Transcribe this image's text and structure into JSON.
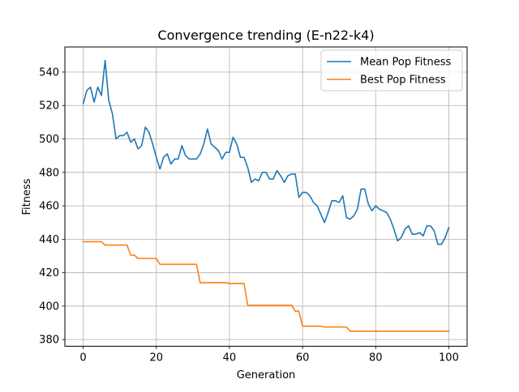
{
  "chart_data": {
    "type": "line",
    "title": "Convergence trending (E-n22-k4)",
    "xlabel": "Generation",
    "ylabel": "Fitness",
    "xlim": [
      -5,
      105
    ],
    "ylim": [
      376,
      555
    ],
    "xticks": [
      0,
      20,
      40,
      60,
      80,
      100
    ],
    "yticks": [
      380,
      400,
      420,
      440,
      460,
      480,
      500,
      520,
      540
    ],
    "grid": true,
    "legend_position": "upper right",
    "series": [
      {
        "name": "Mean Pop Fitness",
        "color": "#1f77b4",
        "x": [
          0,
          1,
          2,
          3,
          4,
          5,
          6,
          7,
          8,
          9,
          10,
          11,
          12,
          13,
          14,
          15,
          16,
          17,
          18,
          19,
          20,
          21,
          22,
          23,
          24,
          25,
          26,
          27,
          28,
          29,
          30,
          31,
          32,
          33,
          34,
          35,
          36,
          37,
          38,
          39,
          40,
          41,
          42,
          43,
          44,
          45,
          46,
          47,
          48,
          49,
          50,
          51,
          52,
          53,
          54,
          55,
          56,
          57,
          58,
          59,
          60,
          61,
          62,
          63,
          64,
          65,
          66,
          67,
          68,
          69,
          70,
          71,
          72,
          73,
          74,
          75,
          76,
          77,
          78,
          79,
          80,
          81,
          82,
          83,
          84,
          85,
          86,
          87,
          88,
          89,
          90,
          91,
          92,
          93,
          94,
          95,
          96,
          97,
          98,
          99,
          100
        ],
        "values": [
          521,
          529,
          531,
          522,
          531,
          526,
          547,
          523,
          515,
          500,
          502,
          502,
          504,
          498,
          500,
          494,
          496,
          507,
          504,
          497,
          489,
          482,
          489,
          491,
          485,
          488,
          488,
          496,
          490,
          488,
          488,
          488,
          491,
          497,
          506,
          497,
          495,
          493,
          488,
          492,
          492,
          501,
          497,
          489,
          489,
          483,
          474,
          476,
          475,
          480,
          480,
          476,
          476,
          481,
          478,
          474,
          478,
          479,
          479,
          465,
          468,
          468,
          466,
          462,
          460,
          455,
          450,
          456,
          463,
          463,
          462,
          466,
          453,
          452,
          454,
          458,
          470,
          470,
          461,
          457,
          460,
          458,
          457,
          456,
          452,
          446,
          439,
          441,
          446,
          448,
          443,
          443,
          444,
          442,
          448,
          448,
          445,
          437,
          437,
          441,
          447
        ]
      },
      {
        "name": "Best Pop Fitness",
        "color": "#ff7f0e",
        "x": [
          0,
          1,
          2,
          3,
          4,
          5,
          6,
          7,
          8,
          9,
          10,
          11,
          12,
          13,
          14,
          15,
          16,
          17,
          18,
          19,
          20,
          21,
          22,
          23,
          24,
          25,
          26,
          27,
          28,
          29,
          30,
          31,
          32,
          33,
          34,
          35,
          36,
          37,
          38,
          39,
          40,
          41,
          42,
          43,
          44,
          45,
          46,
          47,
          48,
          49,
          50,
          51,
          52,
          53,
          54,
          55,
          56,
          57,
          58,
          59,
          60,
          61,
          62,
          63,
          64,
          65,
          66,
          67,
          68,
          69,
          70,
          71,
          72,
          73,
          74,
          75,
          76,
          77,
          78,
          79,
          80,
          81,
          82,
          83,
          84,
          85,
          86,
          87,
          88,
          89,
          90,
          91,
          92,
          93,
          94,
          95,
          96,
          97,
          98,
          99,
          100
        ],
        "values": [
          438.5,
          438.5,
          438.5,
          438.5,
          438.5,
          438.5,
          436.5,
          436.5,
          436.5,
          436.5,
          436.5,
          436.5,
          436.5,
          430.5,
          430.5,
          428.5,
          428.5,
          428.5,
          428.5,
          428.5,
          428.5,
          425,
          425,
          425,
          425,
          425,
          425,
          425,
          425,
          425,
          425,
          425,
          414,
          414,
          414,
          414,
          414,
          414,
          414,
          414,
          413.5,
          413.5,
          413.5,
          413.5,
          413.5,
          400.5,
          400.5,
          400.5,
          400.5,
          400.5,
          400.5,
          400.5,
          400.5,
          400.5,
          400.5,
          400.5,
          400.5,
          400.5,
          397,
          397,
          388,
          388,
          388,
          388,
          388,
          388,
          387.5,
          387.5,
          387.5,
          387.5,
          387.5,
          387.5,
          387.5,
          385,
          385,
          385,
          385,
          385,
          385,
          385,
          385,
          385,
          385,
          385,
          385,
          385,
          385,
          385,
          385,
          385,
          385,
          385,
          385,
          385,
          385,
          385,
          385,
          385,
          385,
          385,
          385
        ]
      }
    ]
  }
}
